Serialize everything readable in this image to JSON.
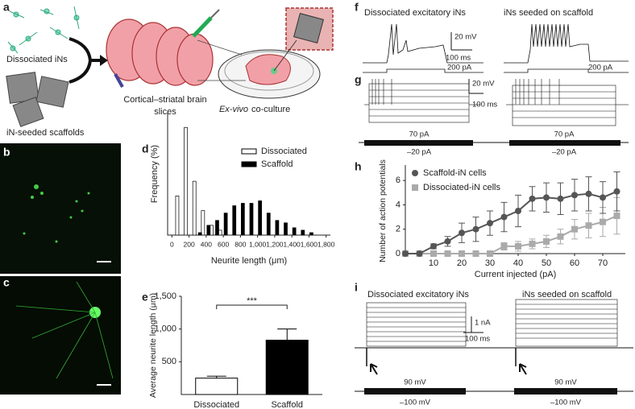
{
  "figure": {
    "panel_labels": [
      "a",
      "b",
      "c",
      "d",
      "e",
      "f",
      "g",
      "h",
      "i"
    ]
  },
  "panel_a": {
    "dissociated": "Dissociated iNs",
    "scaffolds": "iN-seeded scaffolds",
    "slices": [
      "Cortical–striatal brain",
      "slices"
    ],
    "coculture_italic": "Ex-vivo",
    "coculture": "co-culture"
  },
  "panel_f": {
    "titles": [
      "Dissociated excitatory iNs",
      "iNs seeded on scaffold"
    ],
    "scale_v": "20 mV",
    "scale_t": "100 ms",
    "steps": [
      "200 pA",
      "200 pA"
    ]
  },
  "panel_g": {
    "scale_v": "20 mV",
    "scale_t": "100 ms",
    "steps": [
      "70 pA",
      "70 pA"
    ],
    "holds": [
      "–20 pA",
      "–20 pA"
    ]
  },
  "panel_i": {
    "titles": [
      "Dissociated excitatory iNs",
      "iNs seeded on scaffold"
    ],
    "scale_i": "1 nA",
    "scale_t": "100 ms",
    "steps": [
      "90 mV",
      "90 mV"
    ],
    "holds": [
      "–100 mV",
      "–100 mV"
    ]
  },
  "chart_data": [
    {
      "type": "histogram",
      "xlabel": "Neurite length (μm)",
      "ylabel": "Frequency (%)",
      "x": [
        100,
        200,
        300,
        400,
        500,
        600,
        700,
        800,
        900,
        1000,
        1100,
        1200,
        1300,
        1400,
        1500,
        1600
      ],
      "series": [
        {
          "name": "Dissociated",
          "color": "#ffffff",
          "values": [
            16,
            44,
            22,
            10,
            4,
            2,
            0,
            0,
            0,
            0,
            0,
            0,
            0,
            0,
            0,
            0
          ]
        },
        {
          "name": "Scaffold",
          "color": "#000000",
          "values": [
            0,
            0,
            1,
            4,
            6,
            9,
            12,
            13,
            13,
            14,
            9,
            6,
            5,
            3,
            2,
            1
          ]
        }
      ],
      "xlim": [
        -50,
        1850
      ],
      "ylim": [
        0,
        50
      ],
      "xticks": [
        0,
        200,
        400,
        600,
        800,
        {
          "value": 1000,
          "label": "1,000"
        },
        {
          "value": 1200,
          "label": "1,200"
        },
        {
          "value": 1400,
          "label": "1,400"
        },
        {
          "value": 1600,
          "label": "1,600"
        },
        {
          "value": 1800,
          "label": "1,800"
        }
      ],
      "legend": "upper right"
    },
    {
      "type": "bar",
      "ylabel": "Average neurite length (μm)",
      "categories": [
        "Dissociated",
        "Scaffold"
      ],
      "values": [
        250,
        830
      ],
      "errors": [
        30,
        170
      ],
      "colors": [
        "#ffffff",
        "#000000"
      ],
      "ylim": [
        0,
        1500
      ],
      "yticks": [
        500,
        {
          "value": 1000,
          "label": "1,000"
        },
        {
          "value": 1500,
          "label": "1,500"
        }
      ],
      "annotation": "***"
    },
    {
      "type": "line",
      "xlabel": "Current injected (pA)",
      "ylabel": "Number of action potentials",
      "x": [
        0,
        5,
        10,
        15,
        20,
        25,
        30,
        35,
        40,
        45,
        50,
        55,
        60,
        65,
        70,
        75
      ],
      "series": [
        {
          "name": "Scaffold-iN cells",
          "color": "#555555",
          "values": [
            0,
            0,
            0.6,
            1,
            1.7,
            2,
            2.5,
            3,
            3.5,
            4.5,
            4.6,
            4.5,
            4.8,
            4.9,
            4.6,
            5.1
          ],
          "errors": [
            0,
            0,
            0.2,
            0.4,
            0.8,
            1,
            1,
            1.2,
            1.3,
            1,
            1.2,
            1.3,
            1.3,
            1.4,
            1.3,
            1.6
          ]
        },
        {
          "name": "Dissociated-iN cells",
          "color": "#aaaaaa",
          "values": [
            0,
            0,
            0,
            0,
            0,
            0,
            0,
            0.6,
            0.6,
            0.8,
            1,
            1.4,
            2,
            2.3,
            2.6,
            3.1
          ],
          "errors": [
            0,
            0,
            0,
            0,
            0,
            0,
            0,
            0.3,
            0.4,
            0.4,
            0.5,
            0.6,
            0.8,
            1,
            1.2,
            1.5
          ]
        }
      ],
      "xlim": [
        0,
        78
      ],
      "ylim": [
        0,
        7
      ],
      "xticks": [
        10,
        20,
        30,
        40,
        50,
        60,
        70
      ],
      "yticks": [
        0,
        2,
        4,
        6
      ],
      "legend": "upper left"
    }
  ]
}
